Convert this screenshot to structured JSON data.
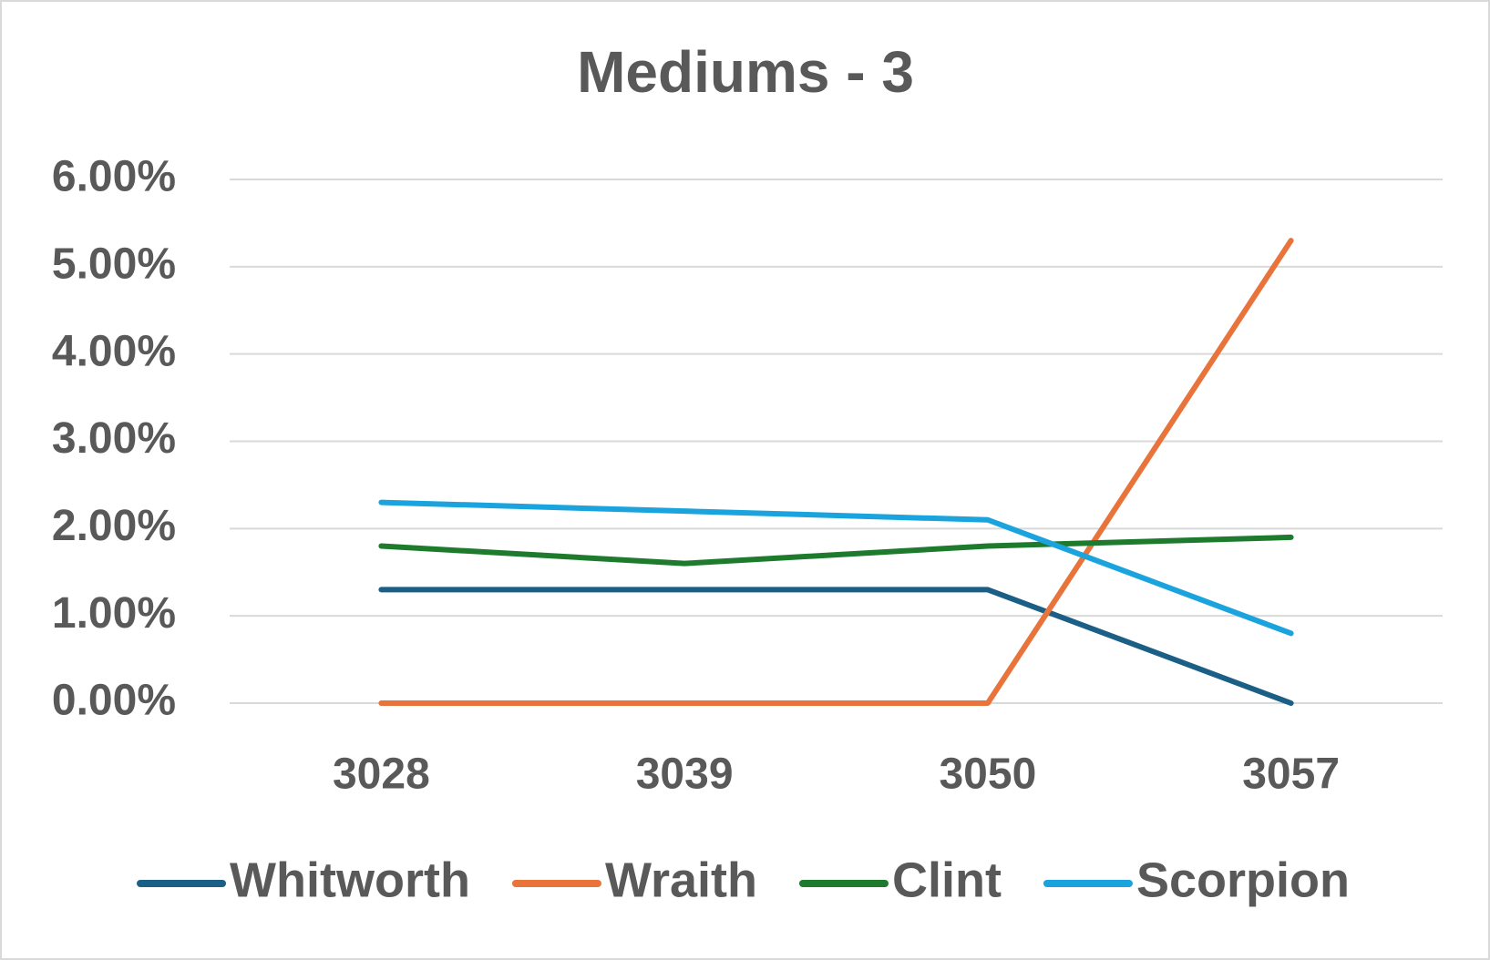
{
  "chart_data": {
    "type": "line",
    "title": "Mediums - 3",
    "categories": [
      "3028",
      "3039",
      "3050",
      "3057"
    ],
    "series": [
      {
        "name": "Whitworth",
        "color": "#1b5e86",
        "values": [
          1.3,
          1.3,
          1.3,
          0
        ]
      },
      {
        "name": "Wraith",
        "color": "#e8743b",
        "values": [
          0,
          0,
          0,
          5.3
        ]
      },
      {
        "name": "Clint",
        "color": "#1e7b2e",
        "values": [
          1.8,
          1.6,
          1.8,
          1.9
        ]
      },
      {
        "name": "Scorpion",
        "color": "#1aa3dc",
        "values": [
          2.3,
          2.2,
          2.1,
          0.8
        ]
      }
    ],
    "ylim": [
      0,
      6
    ],
    "yticks": [
      {
        "value": 0,
        "label": "0.00%"
      },
      {
        "value": 1,
        "label": "1.00%"
      },
      {
        "value": 2,
        "label": "2.00%"
      },
      {
        "value": 3,
        "label": "3.00%"
      },
      {
        "value": 4,
        "label": "4.00%"
      },
      {
        "value": 5,
        "label": "5.00%"
      },
      {
        "value": 6,
        "label": "6.00%"
      }
    ],
    "grid": true,
    "legend": "bottom"
  }
}
